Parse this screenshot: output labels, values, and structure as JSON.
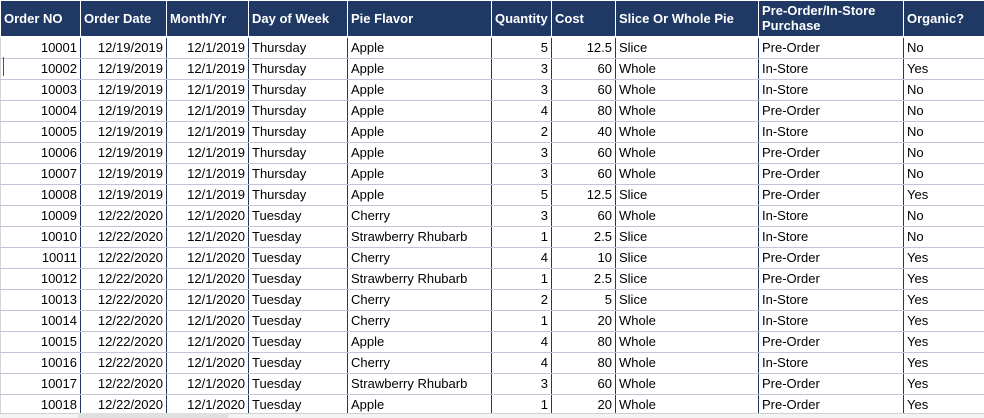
{
  "columns": [
    "Order NO",
    "Order Date",
    "Month/Yr",
    "Day of Week",
    "Pie Flavor",
    "Quantity",
    "Cost",
    "Slice Or Whole Pie",
    "Pre-Order/In-Store Purchase",
    "Organic?"
  ],
  "rows": [
    [
      "10001",
      "12/19/2019",
      "12/1/2019",
      "Thursday",
      "Apple",
      "5",
      "12.5",
      "Slice",
      "Pre-Order",
      "No"
    ],
    [
      "10002",
      "12/19/2019",
      "12/1/2019",
      "Thursday",
      "Apple",
      "3",
      "60",
      "Whole",
      "In-Store",
      "Yes"
    ],
    [
      "10003",
      "12/19/2019",
      "12/1/2019",
      "Thursday",
      "Apple",
      "3",
      "60",
      "Whole",
      "In-Store",
      "No"
    ],
    [
      "10004",
      "12/19/2019",
      "12/1/2019",
      "Thursday",
      "Apple",
      "4",
      "80",
      "Whole",
      "Pre-Order",
      "No"
    ],
    [
      "10005",
      "12/19/2019",
      "12/1/2019",
      "Thursday",
      "Apple",
      "2",
      "40",
      "Whole",
      "In-Store",
      "No"
    ],
    [
      "10006",
      "12/19/2019",
      "12/1/2019",
      "Thursday",
      "Apple",
      "3",
      "60",
      "Whole",
      "Pre-Order",
      "No"
    ],
    [
      "10007",
      "12/19/2019",
      "12/1/2019",
      "Thursday",
      "Apple",
      "3",
      "60",
      "Whole",
      "Pre-Order",
      "No"
    ],
    [
      "10008",
      "12/19/2019",
      "12/1/2019",
      "Thursday",
      "Apple",
      "5",
      "12.5",
      "Slice",
      "Pre-Order",
      "Yes"
    ],
    [
      "10009",
      "12/22/2020",
      "12/1/2020",
      "Tuesday",
      "Cherry",
      "3",
      "60",
      "Whole",
      "In-Store",
      "No"
    ],
    [
      "10010",
      "12/22/2020",
      "12/1/2020",
      "Tuesday",
      "Strawberry Rhubarb",
      "1",
      "2.5",
      "Slice",
      "In-Store",
      "No"
    ],
    [
      "10011",
      "12/22/2020",
      "12/1/2020",
      "Tuesday",
      "Cherry",
      "4",
      "10",
      "Slice",
      "Pre-Order",
      "Yes"
    ],
    [
      "10012",
      "12/22/2020",
      "12/1/2020",
      "Tuesday",
      "Strawberry Rhubarb",
      "1",
      "2.5",
      "Slice",
      "Pre-Order",
      "Yes"
    ],
    [
      "10013",
      "12/22/2020",
      "12/1/2020",
      "Tuesday",
      "Cherry",
      "2",
      "5",
      "Slice",
      "In-Store",
      "Yes"
    ],
    [
      "10014",
      "12/22/2020",
      "12/1/2020",
      "Tuesday",
      "Cherry",
      "1",
      "20",
      "Whole",
      "In-Store",
      "Yes"
    ],
    [
      "10015",
      "12/22/2020",
      "12/1/2020",
      "Tuesday",
      "Apple",
      "4",
      "80",
      "Whole",
      "Pre-Order",
      "Yes"
    ],
    [
      "10016",
      "12/22/2020",
      "12/1/2020",
      "Tuesday",
      "Cherry",
      "4",
      "80",
      "Whole",
      "In-Store",
      "Yes"
    ],
    [
      "10017",
      "12/22/2020",
      "12/1/2020",
      "Tuesday",
      "Strawberry Rhubarb",
      "3",
      "60",
      "Whole",
      "Pre-Order",
      "Yes"
    ],
    [
      "10018",
      "12/22/2020",
      "12/1/2020",
      "Tuesday",
      "Apple",
      "1",
      "20",
      "Whole",
      "Pre-Order",
      "Yes"
    ]
  ],
  "colors": {
    "header_bg": "#1f3864",
    "header_text": "#ffffff",
    "grid_line": "#1f3864"
  }
}
